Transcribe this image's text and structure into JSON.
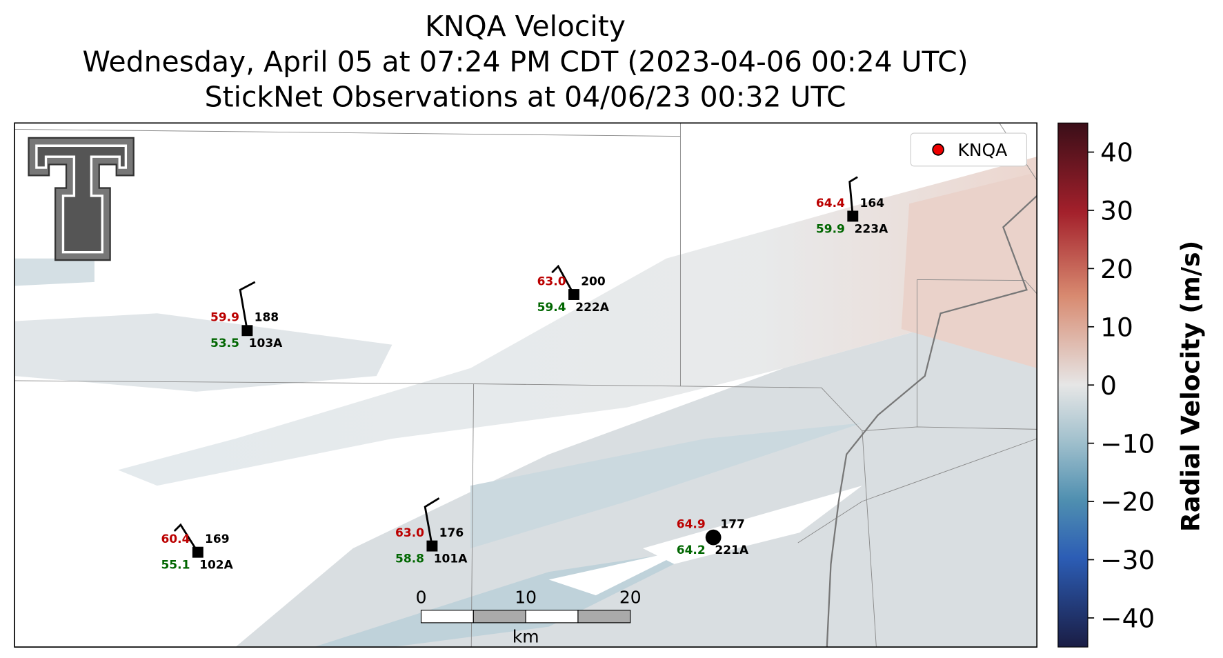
{
  "title": [
    "KNQA Velocity",
    "Wednesday, April 05 at 07:24 PM CDT (2023-04-06 00:24 UTC)",
    "StickNet Observations at 04/06/23 00:32 UTC"
  ],
  "legend": {
    "label": "KNQA"
  },
  "stations": [
    {
      "id": "103A",
      "temperature": "59.9",
      "dewpoint": "53.5",
      "value": "188"
    },
    {
      "id": "222A",
      "temperature": "63.0",
      "dewpoint": "59.4",
      "value": "200"
    },
    {
      "id": "223A",
      "temperature": "64.4",
      "dewpoint": "59.9",
      "value": "164"
    },
    {
      "id": "102A",
      "temperature": "60.4",
      "dewpoint": "55.1",
      "value": "169"
    },
    {
      "id": "101A",
      "temperature": "63.0",
      "dewpoint": "58.8",
      "value": "176"
    },
    {
      "id": "221A",
      "temperature": "64.9",
      "dewpoint": "64.2",
      "value": "177"
    }
  ],
  "scale_bar": {
    "ticks": [
      0,
      10,
      20
    ],
    "unit": "km"
  },
  "colorbar": {
    "label": "Radial Velocity (m/s)",
    "lim": [
      -45,
      45
    ],
    "ticks": [
      40,
      30,
      20,
      10,
      0,
      {
        "value": -10,
        "label": "−10"
      },
      {
        "value": -20,
        "label": "−20"
      },
      {
        "value": -30,
        "label": "−30"
      },
      {
        "value": -40,
        "label": "−40"
      }
    ]
  }
}
